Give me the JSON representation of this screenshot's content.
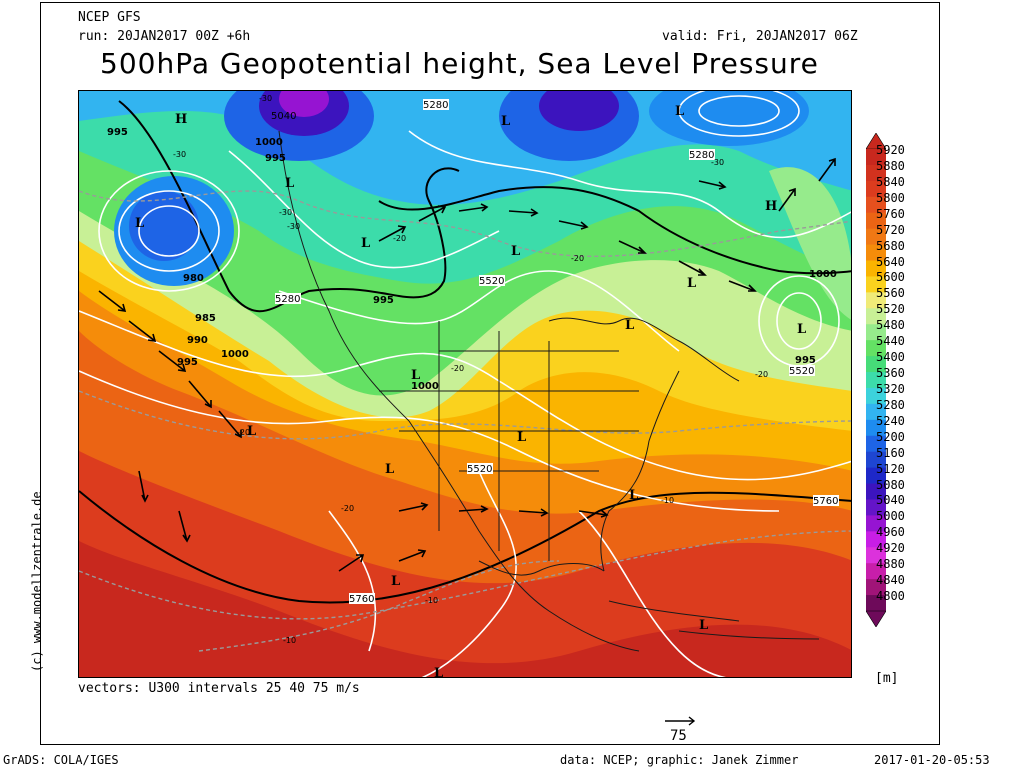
{
  "header": {
    "model": "NCEP GFS",
    "run": "run: 20JAN2017 00Z +6h",
    "valid": "valid: Fri, 20JAN2017 06Z",
    "title": "500hPa Geopotential height, Sea Level Pressure"
  },
  "vectors_note": "vectors: U300 intervals 25 40 75 m/s",
  "ref_vector_value": "75",
  "colorbar": {
    "unit": "[m]",
    "levels": [
      "5920",
      "5880",
      "5840",
      "5800",
      "5760",
      "5720",
      "5680",
      "5640",
      "5600",
      "5560",
      "5520",
      "5480",
      "5440",
      "5400",
      "5360",
      "5320",
      "5280",
      "5240",
      "5200",
      "5160",
      "5120",
      "5080",
      "5040",
      "5000",
      "4960",
      "4920",
      "4880",
      "4840",
      "4800"
    ],
    "colors": [
      "#c8281e",
      "#d2321e",
      "#dc3c1e",
      "#e6501e",
      "#eb6414",
      "#f07814",
      "#f58c0a",
      "#fab400",
      "#fad21e",
      "#f0eb78",
      "#c8f096",
      "#96eb8c",
      "#64e164",
      "#46dc78",
      "#3cdcaa",
      "#3cd2dc",
      "#32b4f0",
      "#1e8cf0",
      "#1e64e6",
      "#1e46d2",
      "#1e28c8",
      "#3c14be",
      "#6414c8",
      "#9614d2",
      "#c81ee6",
      "#dc32dc",
      "#c81eaa",
      "#a01478",
      "#6e0a5a"
    ]
  },
  "footer": {
    "left": "GrADS: COLA/IGES",
    "center": "data: NCEP; graphic: Janek Zimmer",
    "right": "2017-01-20-05:53"
  },
  "side_credit": "(c) www.modellzentrale.de",
  "map_labels": {
    "pressure_centers": [
      "H",
      "H",
      "L",
      "L",
      "L",
      "L",
      "L",
      "L",
      "L",
      "L",
      "L",
      "L",
      "L",
      "L",
      "L",
      "L",
      "L",
      "L",
      "L"
    ],
    "isobars": [
      "995",
      "1000",
      "995",
      "980",
      "985",
      "990",
      "995",
      "1000",
      "995",
      "1000",
      "1000",
      "995"
    ],
    "heights": [
      "5280",
      "5040",
      "5280",
      "5280",
      "5520",
      "5520",
      "5520",
      "5760",
      "5760"
    ],
    "temps": [
      "-30",
      "-30",
      "-30",
      "-20",
      "-20",
      "-20",
      "-20",
      "-10",
      "-10",
      "-10",
      "-30",
      "-20",
      "-30",
      "-20"
    ]
  }
}
